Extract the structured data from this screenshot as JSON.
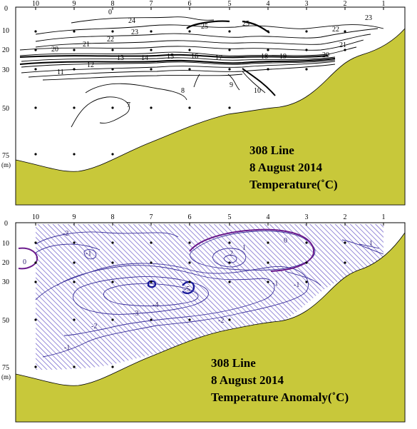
{
  "colors": {
    "terrain": "#c8c83a",
    "contour": "#000000",
    "anomaly_contour": "#3a2f9a",
    "anomaly_hatch": "#5c4fc0",
    "anomaly_zero": "#6a1a8c"
  },
  "upper_panel": {
    "stations": [
      "10",
      "9",
      "8",
      "7",
      "6",
      "5",
      "4",
      "3",
      "2",
      "1"
    ],
    "depth_labels": [
      "0",
      "10",
      "20",
      "30",
      "50",
      "75"
    ],
    "depth_unit": "(m)",
    "contour_labels": [
      "24",
      "25",
      "25",
      "23",
      "22",
      "23",
      "20",
      "21",
      "22",
      "21",
      "20",
      "11",
      "12",
      "13",
      "14",
      "15",
      "16",
      "17",
      "18",
      "19",
      "9",
      "10",
      "8",
      "7",
      "0"
    ],
    "title_line1": "308 Line",
    "title_line2": "8 August 2014",
    "title_line3": "Temperature(˚C)"
  },
  "lower_panel": {
    "stations": [
      "10",
      "9",
      "8",
      "7",
      "6",
      "5",
      "4",
      "3",
      "2",
      "1"
    ],
    "depth_labels": [
      "0",
      "10",
      "20",
      "30",
      "50",
      "75"
    ],
    "depth_unit": "(m)",
    "contour_labels": [
      "-2",
      "-1",
      "0",
      "1",
      "2",
      "0",
      "-1",
      "-2",
      "-3",
      "-4",
      "-5",
      "-2",
      "-1",
      "-1",
      "1"
    ],
    "title_line1": "308 Line",
    "title_line2": "8 August 2014",
    "title_line3": "Temperature Anomaly(˚C)"
  }
}
